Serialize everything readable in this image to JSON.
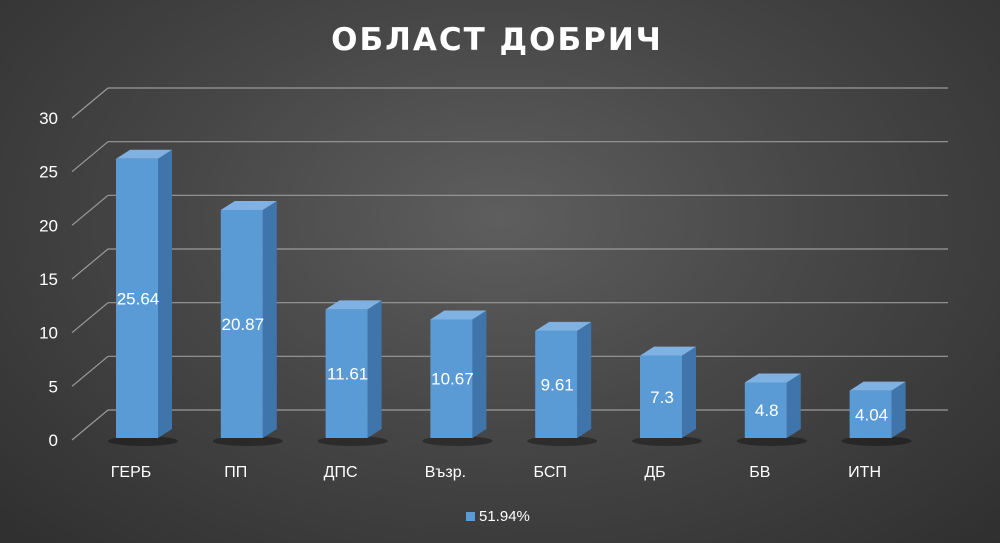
{
  "chart_data": {
    "type": "bar",
    "title": "ОБЛАСТ ДОБРИЧ",
    "categories": [
      "ГЕРБ",
      "ПП",
      "ДПС",
      "Възр.",
      "БСП",
      "ДБ",
      "БВ",
      "ИТН"
    ],
    "series": [
      {
        "name": "51.94%",
        "values": [
          25.64,
          20.87,
          11.61,
          10.67,
          9.61,
          7.3,
          4.8,
          4.04
        ],
        "labels": [
          "25.64",
          "20.87",
          "11.61",
          "10.67",
          "9.61",
          "7.3",
          "4.8",
          "4.04"
        ]
      }
    ],
    "ylim": [
      0,
      30
    ],
    "yticks": [
      "0",
      "5",
      "10",
      "15",
      "20",
      "25",
      "30"
    ],
    "grid": true,
    "legend": "bottom",
    "style_3d": true,
    "colors": {
      "bar_front": "#5b9bd5",
      "bar_side": "#3f75aa",
      "bar_top": "#7fb2e3",
      "grid": "#9a9a9a",
      "text": "#ffffff"
    }
  }
}
